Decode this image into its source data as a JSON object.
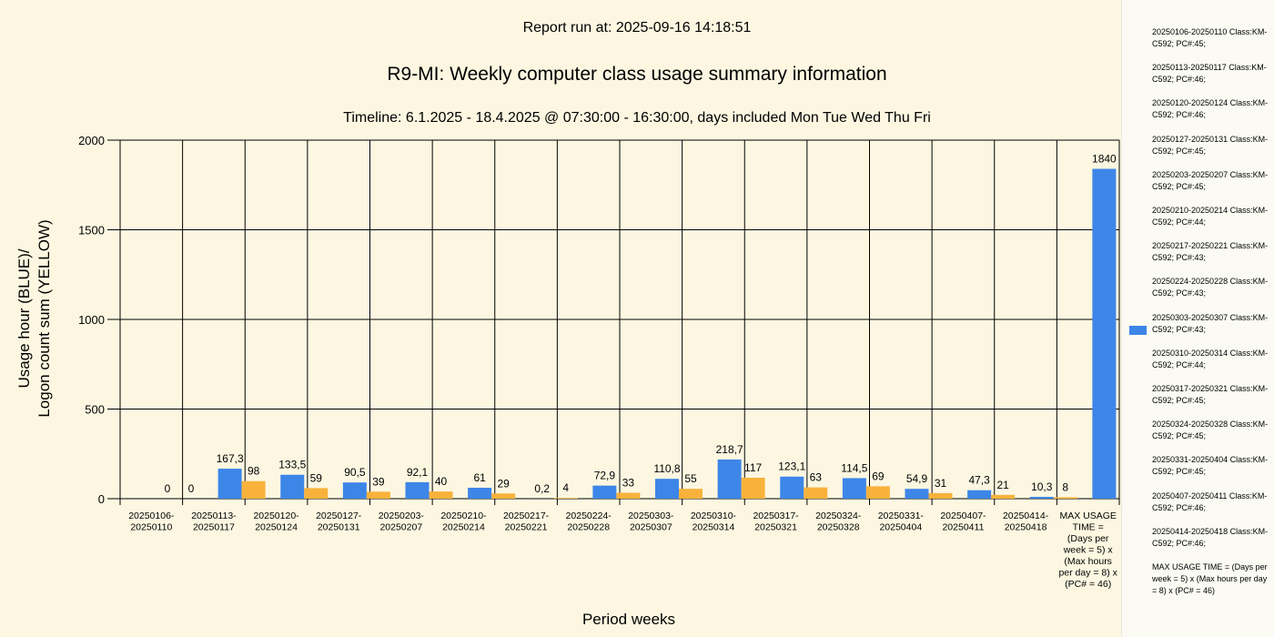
{
  "header": {
    "run_at": "Report run at: 2025-09-16 14:18:51",
    "title": "R9-MI: Weekly computer class usage summary information",
    "subtitle": "Timeline:  6.1.2025  - 18.4.2025  @  07:30:00 -  16:30:00, days included Mon Tue Wed Thu Fri"
  },
  "colors": {
    "usage": "#3d86e8",
    "logon": "#f8b23c",
    "background": "#fdf7e1"
  },
  "chart_data": {
    "type": "bar",
    "xlabel": "Period weeks",
    "ylabel_lines": [
      "Usage hour (BLUE)/",
      "Logon count sum (YELLOW)"
    ],
    "ylim": [
      0,
      2000
    ],
    "yticks": [
      "0",
      "500",
      "1000",
      "1500",
      "2000"
    ],
    "grid": true,
    "categories": [
      [
        "20250106-",
        "20250110"
      ],
      [
        "20250113-",
        "20250117"
      ],
      [
        "20250120-",
        "20250124"
      ],
      [
        "20250127-",
        "20250131"
      ],
      [
        "20250203-",
        "20250207"
      ],
      [
        "20250210-",
        "20250214"
      ],
      [
        "20250217-",
        "20250221"
      ],
      [
        "20250224-",
        "20250228"
      ],
      [
        "20250303-",
        "20250307"
      ],
      [
        "20250310-",
        "20250314"
      ],
      [
        "20250317-",
        "20250321"
      ],
      [
        "20250324-",
        "20250328"
      ],
      [
        "20250331-",
        "20250404"
      ],
      [
        "20250407-",
        "20250411"
      ],
      [
        "20250414-",
        "20250418"
      ],
      [
        "MAX USAGE",
        "TIME =",
        "(Days per",
        "week = 5) x",
        "(Max hours",
        "per day = 8) x",
        "(PC# = 46)"
      ]
    ],
    "series": [
      {
        "color": "#3d86e8",
        "values": [
          0,
          167.3,
          133.5,
          90.5,
          92.1,
          61,
          0.2,
          72.9,
          110.8,
          218.7,
          123.1,
          114.5,
          54.9,
          47.3,
          10.3,
          1840
        ],
        "labels": [
          "0",
          "167,3",
          "133,5",
          "90,5",
          "92,1",
          "61",
          "0,2",
          "72,9",
          "110,8",
          "218,7",
          "123,1",
          "114,5",
          "54,9",
          "47,3",
          "10,3",
          "1840"
        ]
      },
      {
        "color": "#f8b23c",
        "values": [
          0,
          98,
          59,
          39,
          40,
          29,
          4,
          33,
          55,
          117,
          63,
          69,
          31,
          21,
          8,
          null
        ],
        "labels": [
          "0",
          "98",
          "59",
          "39",
          "40",
          "29",
          "4",
          "33",
          "55",
          "117",
          "63",
          "69",
          "31",
          "21",
          "8",
          ""
        ]
      }
    ]
  },
  "legend": {
    "items": [
      "20250106-20250110 Class:KM-C592; PC#:45;",
      "20250113-20250117 Class:KM-C592; PC#:46;",
      "20250120-20250124 Class:KM-C592; PC#:46;",
      "20250127-20250131 Class:KM-C592; PC#:45;",
      "20250203-20250207 Class:KM-C592; PC#:45;",
      "20250210-20250214 Class:KM-C592; PC#:44;",
      "20250217-20250221 Class:KM-C592; PC#:43;",
      "20250224-20250228 Class:KM-C592; PC#:43;",
      "20250303-20250307 Class:KM-C592; PC#:43;",
      "20250310-20250314 Class:KM-C592; PC#:44;",
      "20250317-20250321 Class:KM-C592; PC#:45;",
      "20250324-20250328 Class:KM-C592; PC#:45;",
      "20250331-20250404 Class:KM-C592; PC#:45;",
      "20250407-20250411 Class:KM-C592; PC#:46;",
      "20250414-20250418 Class:KM-C592; PC#:46;",
      "MAX USAGE TIME =  (Days per week = 5) x (Max hours per day = 8) x (PC# = 46)"
    ],
    "swatch_item_index": 8
  }
}
